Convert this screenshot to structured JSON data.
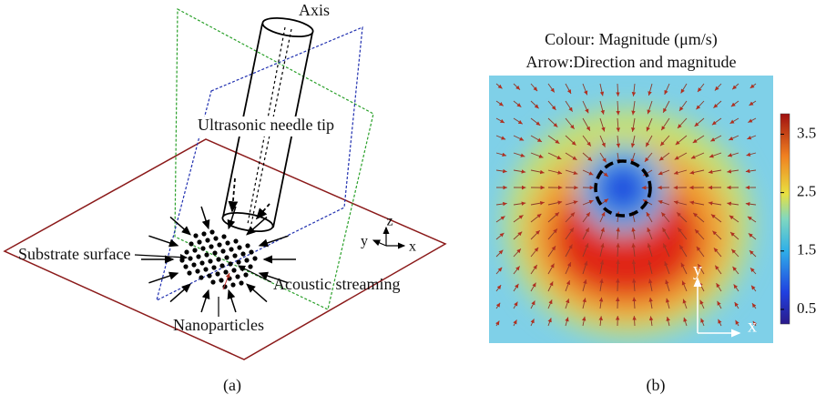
{
  "panel_a": {
    "labels": {
      "axis": "Axis",
      "needle": "Ultrasonic needle tip",
      "substrate": "Substrate surface",
      "streaming": "Acoustic streaming",
      "nanoparticles": "Nanoparticles"
    },
    "axes": {
      "z": "z",
      "y": "y",
      "x": "x"
    },
    "caption": "(a)"
  },
  "panel_b": {
    "title": "Colour: Magnitude (μm/s)",
    "subtitle": "Arrow:Direction and magnitude",
    "colorbar": {
      "range": [
        0.25,
        3.85
      ],
      "ticks": [
        0.5,
        1.5,
        2.5,
        3.5
      ]
    },
    "axes": {
      "y": "y",
      "x": "x"
    },
    "caption": "(b)"
  }
}
